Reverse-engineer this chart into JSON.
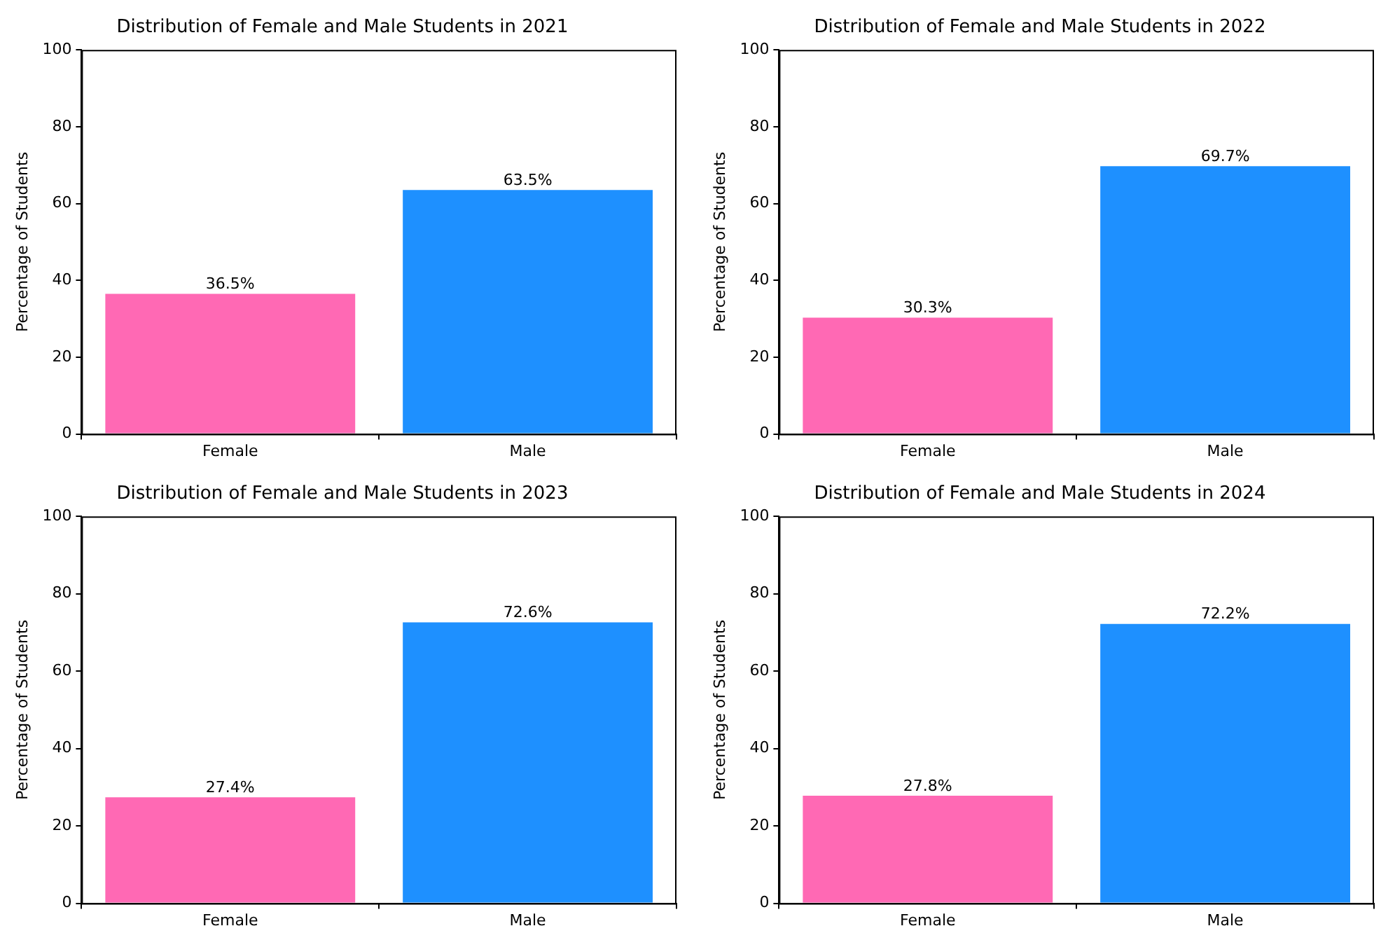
{
  "chart_data": [
    {
      "type": "bar",
      "title": "Distribution of Female and Male Students in 2021",
      "ylabel": "Percentage of Students",
      "categories": [
        "Female",
        "Male"
      ],
      "values": [
        36.5,
        63.5
      ],
      "value_labels": [
        "36.5%",
        "63.5%"
      ],
      "colors": [
        "#ff69b4",
        "#1e90ff"
      ],
      "ylim": [
        0,
        100
      ],
      "yticks": [
        0,
        20,
        40,
        60,
        80,
        100
      ],
      "grid": false,
      "legend": false
    },
    {
      "type": "bar",
      "title": "Distribution of Female and Male Students in 2022",
      "ylabel": "Percentage of Students",
      "categories": [
        "Female",
        "Male"
      ],
      "values": [
        30.3,
        69.7
      ],
      "value_labels": [
        "30.3%",
        "69.7%"
      ],
      "colors": [
        "#ff69b4",
        "#1e90ff"
      ],
      "ylim": [
        0,
        100
      ],
      "yticks": [
        0,
        20,
        40,
        60,
        80,
        100
      ],
      "grid": false,
      "legend": false
    },
    {
      "type": "bar",
      "title": "Distribution of Female and Male Students in 2023",
      "ylabel": "Percentage of Students",
      "categories": [
        "Female",
        "Male"
      ],
      "values": [
        27.4,
        72.6
      ],
      "value_labels": [
        "27.4%",
        "72.6%"
      ],
      "colors": [
        "#ff69b4",
        "#1e90ff"
      ],
      "ylim": [
        0,
        100
      ],
      "yticks": [
        0,
        20,
        40,
        60,
        80,
        100
      ],
      "grid": false,
      "legend": false
    },
    {
      "type": "bar",
      "title": "Distribution of Female and Male Students in 2024",
      "ylabel": "Percentage of Students",
      "categories": [
        "Female",
        "Male"
      ],
      "values": [
        27.8,
        72.2
      ],
      "value_labels": [
        "27.8%",
        "72.2%"
      ],
      "colors": [
        "#ff69b4",
        "#1e90ff"
      ],
      "ylim": [
        0,
        100
      ],
      "yticks": [
        0,
        20,
        40,
        60,
        80,
        100
      ],
      "grid": false,
      "legend": false
    }
  ]
}
